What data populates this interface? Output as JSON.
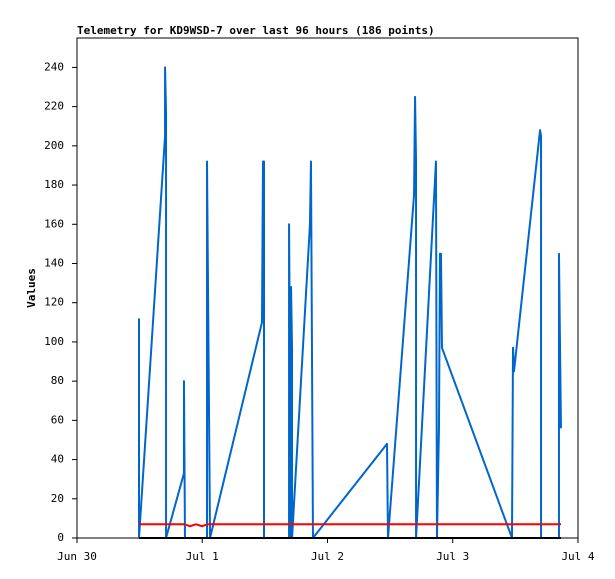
{
  "chart_data": {
    "type": "line",
    "title": "Telemetry for KD9WSD-7 over last 96 hours (186 points)",
    "y_label": "Values",
    "xlim": [
      0,
      4
    ],
    "xticks": [
      {
        "value": 0,
        "label": "Jun 30"
      },
      {
        "value": 1,
        "label": "Jul 1"
      },
      {
        "value": 2,
        "label": "Jul 2"
      },
      {
        "value": 3,
        "label": "Jul 3"
      },
      {
        "value": 4,
        "label": "Jul 4"
      }
    ],
    "ylim": [
      0,
      255
    ],
    "yticks": [
      0,
      20,
      40,
      60,
      80,
      100,
      120,
      140,
      160,
      180,
      200,
      220,
      240
    ],
    "series": [
      {
        "color": "#0066cc",
        "x": [
          0.495,
          0.495,
          0.703,
          0.703,
          0.711,
          0.711,
          0.854,
          0.854,
          0.862,
          0.862,
          1.038,
          1.038,
          1.062,
          1.477,
          1.485,
          1.493,
          1.493,
          1.693,
          1.693,
          1.709,
          1.709,
          1.717,
          1.717,
          1.86,
          1.868,
          1.884,
          2.475,
          2.483,
          2.691,
          2.699,
          2.707,
          2.707,
          2.866,
          2.874,
          2.89,
          2.898,
          2.906,
          2.914,
          3.473,
          3.481,
          3.489,
          3.697,
          3.705,
          3.705,
          3.848,
          3.848,
          3.864
        ],
        "values": [
          112,
          0,
          205,
          240,
          217,
          0,
          33,
          80,
          0,
          0,
          0,
          192,
          0,
          110,
          192,
          192,
          0,
          0,
          160,
          0,
          128,
          96,
          0,
          160,
          192,
          0,
          48,
          0,
          175,
          225,
          192,
          0,
          192,
          0,
          56,
          145,
          145,
          97,
          0,
          97,
          85,
          208,
          205,
          0,
          0,
          145,
          56
        ]
      },
      {
        "color": "#ff0000",
        "x": [
          0.495,
          0.862,
          0.9,
          0.95,
          1.0,
          1.04,
          3.864
        ],
        "values": [
          7,
          7,
          6,
          7,
          6,
          7,
          7
        ]
      },
      {
        "color": "#000000",
        "x": [
          0.495,
          3.864
        ],
        "values": [
          0,
          0
        ]
      }
    ]
  }
}
